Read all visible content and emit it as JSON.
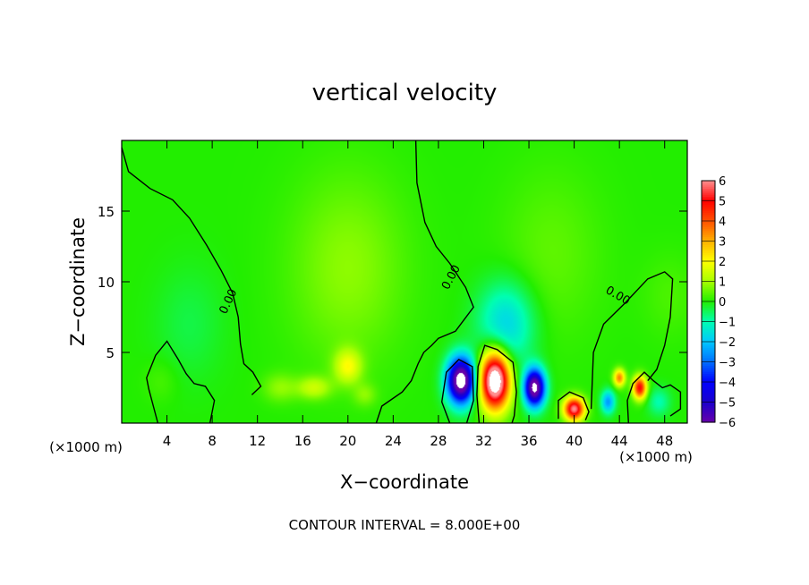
{
  "chart_data": {
    "type": "heatmap",
    "title": "vertical velocity",
    "xlabel": "X−coordinate",
    "ylabel": "Z−coordinate",
    "x_unit_left": "(×1000 m)",
    "x_unit_right": "(×1000 m)",
    "footer": "CONTOUR INTERVAL = 8.000E+00",
    "xlim": [
      0,
      50
    ],
    "ylim": [
      0,
      20
    ],
    "x_ticks": [
      {
        "value": 4,
        "label": "4"
      },
      {
        "value": 8,
        "label": "8"
      },
      {
        "value": 12,
        "label": "12"
      },
      {
        "value": 16,
        "label": "16"
      },
      {
        "value": 20,
        "label": "20"
      },
      {
        "value": 24,
        "label": "24"
      },
      {
        "value": 28,
        "label": "28"
      },
      {
        "value": 32,
        "label": "32"
      },
      {
        "value": 36,
        "label": "36"
      },
      {
        "value": 40,
        "label": "40"
      },
      {
        "value": 44,
        "label": "44"
      },
      {
        "value": 48,
        "label": "48"
      }
    ],
    "y_ticks": [
      {
        "value": 5,
        "label": "5"
      },
      {
        "value": 10,
        "label": "10"
      },
      {
        "value": 15,
        "label": "15"
      }
    ],
    "colorbar": {
      "min": -6,
      "max": 6,
      "labels": [
        {
          "value": 6,
          "label": "6"
        },
        {
          "value": 5,
          "label": "5"
        },
        {
          "value": 4,
          "label": "4"
        },
        {
          "value": 3,
          "label": "3"
        },
        {
          "value": 2,
          "label": "2"
        },
        {
          "value": 1,
          "label": "1"
        },
        {
          "value": 0,
          "label": "0"
        },
        {
          "value": -1,
          "label": "−1"
        },
        {
          "value": -2,
          "label": "−2"
        },
        {
          "value": -3,
          "label": "−3"
        },
        {
          "value": -4,
          "label": "−4"
        },
        {
          "value": -5,
          "label": "−5"
        },
        {
          "value": -6,
          "label": "−6"
        }
      ],
      "stops": [
        {
          "value": -6,
          "color": "#6600aa"
        },
        {
          "value": -5,
          "color": "#1a00cc"
        },
        {
          "value": -4,
          "color": "#0000ff"
        },
        {
          "value": -3,
          "color": "#0070ff"
        },
        {
          "value": -2,
          "color": "#00c8ff"
        },
        {
          "value": -1,
          "color": "#00ffb0"
        },
        {
          "value": 0,
          "color": "#22ee00"
        },
        {
          "value": 1,
          "color": "#a8ff00"
        },
        {
          "value": 2,
          "color": "#ffff00"
        },
        {
          "value": 3,
          "color": "#ffb000"
        },
        {
          "value": 4,
          "color": "#ff5000"
        },
        {
          "value": 5,
          "color": "#ff0000"
        },
        {
          "value": 6,
          "color": "#ff9090"
        }
      ]
    },
    "background_value": 0,
    "saturated_color": "#ffffff",
    "features": [
      {
        "x": 20,
        "z": 11,
        "sx": 5.0,
        "sz": 6.5,
        "value": 0.8
      },
      {
        "x": 20,
        "z": 4,
        "sx": 1.2,
        "sz": 1.2,
        "value": 1.8
      },
      {
        "x": 17,
        "z": 2.5,
        "sx": 1.5,
        "sz": 0.8,
        "value": 1.3
      },
      {
        "x": 14,
        "z": 2.5,
        "sx": 1.5,
        "sz": 1.0,
        "value": 0.8
      },
      {
        "x": 21.5,
        "z": 2,
        "sx": 1.0,
        "sz": 0.8,
        "value": 0.7
      },
      {
        "x": 38,
        "z": 12,
        "sx": 4.5,
        "sz": 6.0,
        "value": 0.45
      },
      {
        "x": 34,
        "z": 7,
        "sx": 2.5,
        "sz": 3.0,
        "value": -1.8
      },
      {
        "x": 30,
        "z": 3,
        "sx": 1.2,
        "sz": 1.6,
        "value": -7.5
      },
      {
        "x": 33,
        "z": 3,
        "sx": 1.3,
        "sz": 2.0,
        "value": 8.0
      },
      {
        "x": 36.5,
        "z": 2.5,
        "sx": 0.9,
        "sz": 1.3,
        "value": -7.0
      },
      {
        "x": 40,
        "z": 1,
        "sx": 0.9,
        "sz": 0.8,
        "value": 6.0
      },
      {
        "x": 43,
        "z": 1.5,
        "sx": 0.6,
        "sz": 0.8,
        "value": -2.5
      },
      {
        "x": 44,
        "z": 3.2,
        "sx": 0.5,
        "sz": 0.6,
        "value": 3.5
      },
      {
        "x": 45.8,
        "z": 2.5,
        "sx": 0.6,
        "sz": 0.8,
        "value": 5.0
      },
      {
        "x": 47.5,
        "z": 1.5,
        "sx": 1.0,
        "sz": 1.0,
        "value": -1.0
      },
      {
        "x": 48.5,
        "z": 9,
        "sx": 2.5,
        "sz": 3.0,
        "value": 0.3
      },
      {
        "x": 6,
        "z": 7,
        "sx": 3.0,
        "sz": 4.0,
        "value": -0.4
      },
      {
        "x": 3.5,
        "z": 3,
        "sx": 1.5,
        "sz": 1.5,
        "value": 0.3
      }
    ],
    "contours": [
      {
        "label": "0.00",
        "label_x": 9.7,
        "label_z": 8.5,
        "label_angle": 65,
        "points": [
          [
            0,
            19.5
          ],
          [
            0.6,
            17.8
          ],
          [
            2.5,
            16.6
          ],
          [
            4.5,
            15.8
          ],
          [
            6,
            14.5
          ],
          [
            7.5,
            12.6
          ],
          [
            8.8,
            10.8
          ],
          [
            9.8,
            9.2
          ],
          [
            10.3,
            7.5
          ],
          [
            10.5,
            5.6
          ],
          [
            10.8,
            4.2
          ],
          [
            11.6,
            3.6
          ],
          [
            12.3,
            2.6
          ],
          [
            11.5,
            2.0
          ]
        ]
      },
      {
        "label": "0.00",
        "label_x": 29.4,
        "label_z": 10.2,
        "label_angle": 62,
        "points": [
          [
            26,
            20
          ],
          [
            26.1,
            17
          ],
          [
            26.8,
            14.2
          ],
          [
            27.8,
            12.5
          ],
          [
            29,
            11.3
          ],
          [
            30.4,
            9.6
          ],
          [
            31.1,
            8.2
          ],
          [
            29.5,
            6.5
          ],
          [
            28,
            6.0
          ],
          [
            27.4,
            5.5
          ],
          [
            26.7,
            5.0
          ],
          [
            26.2,
            4.2
          ],
          [
            25.6,
            3.0
          ],
          [
            24.8,
            2.2
          ],
          [
            23,
            1.2
          ],
          [
            22.5,
            0
          ]
        ]
      },
      {
        "label": "0.00",
        "label_x": 43.7,
        "label_z": 8.8,
        "label_angle": -30,
        "points": [
          [
            44.8,
            0
          ],
          [
            44.7,
            1.6
          ],
          [
            45.2,
            2.8
          ],
          [
            46.2,
            3.6
          ],
          [
            47,
            3.0
          ],
          [
            47.8,
            2.5
          ],
          [
            48.5,
            2.7
          ],
          [
            49.4,
            2.2
          ],
          [
            49.4,
            1.0
          ],
          [
            48.5,
            0.5
          ]
        ]
      },
      {
        "label": "",
        "label_x": 0,
        "label_z": 0,
        "label_angle": 0,
        "points": [
          [
            41.5,
            1.0
          ],
          [
            41.7,
            5.0
          ],
          [
            42.6,
            7.0
          ],
          [
            44.5,
            8.5
          ],
          [
            46.5,
            10.2
          ],
          [
            48,
            10.7
          ],
          [
            48.7,
            10.2
          ],
          [
            48.5,
            7.5
          ],
          [
            48.0,
            5.5
          ],
          [
            47.3,
            3.8
          ],
          [
            46.5,
            3.0
          ]
        ]
      },
      {
        "label": "",
        "label_x": 0,
        "label_z": 0,
        "label_angle": 0,
        "points": [
          [
            3.2,
            0
          ],
          [
            2.4,
            2.4
          ],
          [
            2.2,
            3.2
          ],
          [
            3.0,
            4.8
          ],
          [
            4.0,
            5.8
          ],
          [
            5.0,
            4.5
          ],
          [
            5.7,
            3.5
          ],
          [
            6.4,
            2.8
          ],
          [
            7.4,
            2.6
          ],
          [
            8.2,
            1.6
          ],
          [
            7.8,
            0
          ]
        ]
      },
      {
        "label": "",
        "label_x": 0,
        "label_z": 0,
        "label_angle": 0,
        "points": [
          [
            31.6,
            0
          ],
          [
            31.4,
            2.0
          ],
          [
            31.5,
            4.0
          ],
          [
            32.1,
            5.5
          ],
          [
            33.2,
            5.2
          ],
          [
            34.6,
            4.3
          ],
          [
            34.9,
            2.2
          ],
          [
            34.7,
            0.5
          ],
          [
            34.5,
            0
          ]
        ]
      },
      {
        "label": "",
        "label_x": 0,
        "label_z": 0,
        "label_angle": 0,
        "points": [
          [
            29.0,
            0
          ],
          [
            28.3,
            1.5
          ],
          [
            28.7,
            3.6
          ],
          [
            29.8,
            4.5
          ],
          [
            31.0,
            4.0
          ],
          [
            31.1,
            1.6
          ],
          [
            30.5,
            0
          ]
        ]
      },
      {
        "label": "",
        "label_x": 0,
        "label_z": 0,
        "label_angle": 0,
        "points": [
          [
            38.6,
            0.3
          ],
          [
            38.6,
            1.6
          ],
          [
            39.6,
            2.2
          ],
          [
            40.8,
            1.8
          ],
          [
            41.3,
            0.8
          ],
          [
            41,
            0.2
          ]
        ]
      }
    ]
  }
}
